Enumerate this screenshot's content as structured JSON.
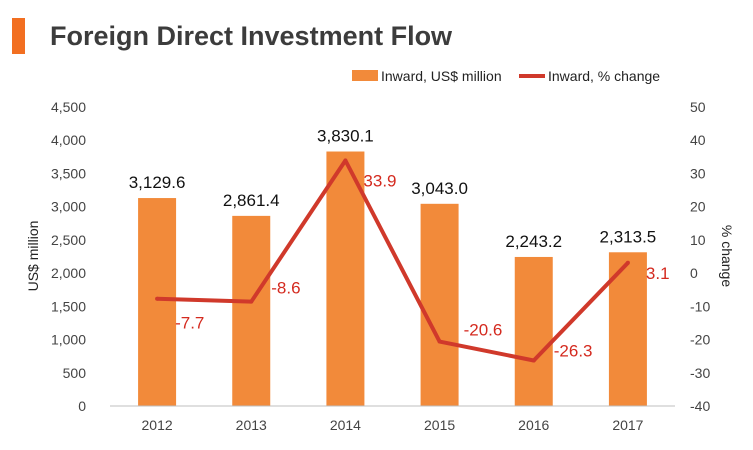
{
  "title": "Foreign Direct Investment Flow",
  "colors": {
    "accent": "#f26f21",
    "bar": "#f28a3a",
    "line": "#d0392b",
    "line_label": "#d42a1f"
  },
  "chart_data": {
    "type": "bar",
    "categories": [
      "2012",
      "2013",
      "2014",
      "2015",
      "2016",
      "2017"
    ],
    "series": [
      {
        "name": "Inward, US$ million",
        "type": "bar",
        "axis": "left",
        "values": [
          3129.6,
          2861.4,
          3830.1,
          3043.0,
          2243.2,
          2313.5
        ],
        "labels": [
          "3,129.6",
          "2,861.4",
          "3,830.1",
          "3,043.0",
          "2,243.2",
          "2,313.5"
        ]
      },
      {
        "name": "Inward, % change",
        "type": "line",
        "axis": "right",
        "values": [
          -7.7,
          -8.6,
          33.9,
          -20.6,
          -26.3,
          3.1
        ],
        "labels": [
          "-7.7",
          "-8.6",
          "33.9",
          "-20.6",
          "-26.3",
          "3.1"
        ]
      }
    ],
    "ylabel": "US$ million",
    "y2label": "% change",
    "ylim": [
      0,
      4500
    ],
    "y2lim": [
      -40,
      50
    ],
    "yticks": [
      "0",
      "500",
      "1,000",
      "1,500",
      "2,000",
      "2,500",
      "3,000",
      "3,500",
      "4,000",
      "4,500"
    ],
    "y2ticks": [
      "-40",
      "-30",
      "-20",
      "-10",
      "0",
      "10",
      "20",
      "30",
      "40",
      "50"
    ],
    "grid": false,
    "legend": "top-right"
  }
}
